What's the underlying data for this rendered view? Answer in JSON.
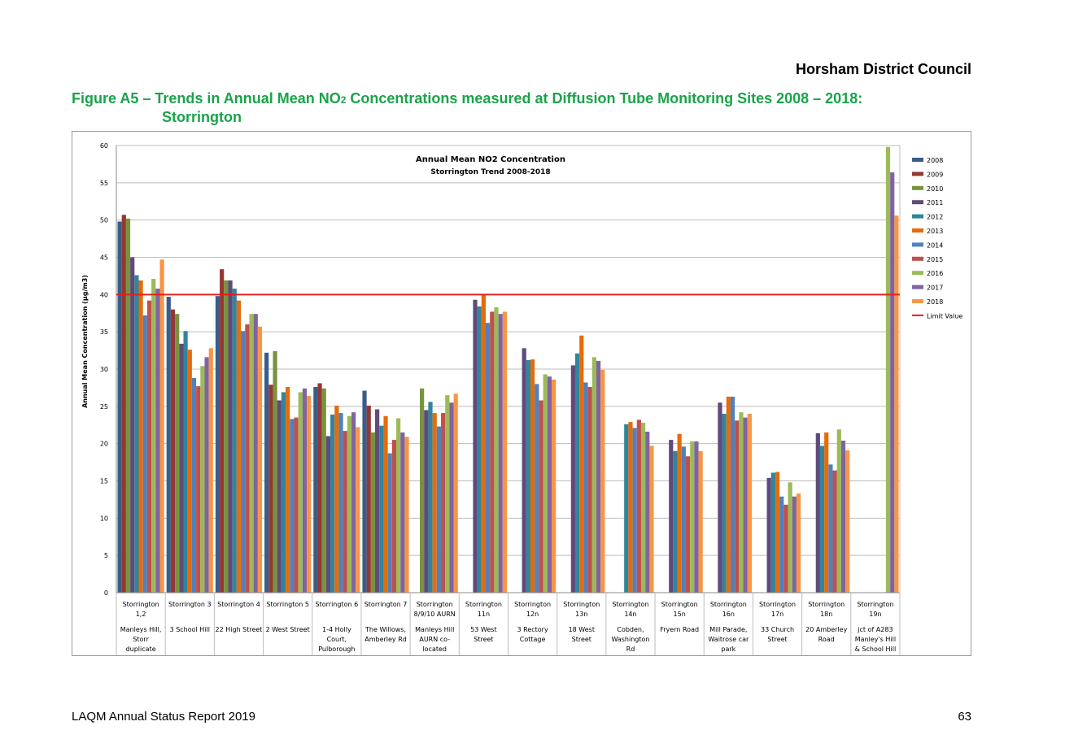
{
  "header": {
    "organization": "Horsham District Council"
  },
  "figure": {
    "title_prefix": "Figure A5 – Trends in Annual Mean NO",
    "title_subscript": "2",
    "title_suffix": " Concentrations measured at Diffusion Tube Monitoring Sites 2008 – 2018:",
    "title_line2": "Storrington"
  },
  "footer": {
    "report": "LAQM Annual Status Report 2019",
    "page": "63"
  },
  "chart_data": {
    "type": "bar",
    "title": "Annual Mean NO2 Concentration",
    "subtitle": "Storrington Trend 2008-2018",
    "ylabel": "Annual Mean Concentration (µg/m3)",
    "xlabel": "",
    "ylim": [
      0,
      60
    ],
    "yticks": [
      0,
      5,
      10,
      15,
      20,
      25,
      30,
      35,
      40,
      45,
      50,
      55,
      60
    ],
    "grid": true,
    "legend_position": "right",
    "limit_value": 40,
    "limit_label": "Limit Value",
    "limit_color": "#e02020",
    "categories": [
      {
        "site": [
          "Storrington",
          "1,2"
        ],
        "location": [
          "Manleys Hill,",
          "Storr",
          "duplicate"
        ]
      },
      {
        "site": [
          "Storrington 3"
        ],
        "location": [
          "3 School Hill"
        ]
      },
      {
        "site": [
          "Storrington 4"
        ],
        "location": [
          "22 High Street"
        ]
      },
      {
        "site": [
          "Storrington 5"
        ],
        "location": [
          "2 West Street"
        ]
      },
      {
        "site": [
          "Storrington 6"
        ],
        "location": [
          "1-4 Holly",
          "Court,",
          "Pulborough"
        ]
      },
      {
        "site": [
          "Storrington 7"
        ],
        "location": [
          "The Willows,",
          "Amberley Rd"
        ]
      },
      {
        "site": [
          "Storrington",
          "8/9/10 AURN"
        ],
        "location": [
          "Manleys Hill",
          "AURN co-",
          "located"
        ]
      },
      {
        "site": [
          "Storrington",
          "11n"
        ],
        "location": [
          "53 West",
          "Street"
        ]
      },
      {
        "site": [
          "Storrington",
          "12n"
        ],
        "location": [
          "3 Rectory",
          "Cottage"
        ]
      },
      {
        "site": [
          "Storrington",
          "13n"
        ],
        "location": [
          "18 West",
          "Street"
        ]
      },
      {
        "site": [
          "Storrington",
          "14n"
        ],
        "location": [
          "Cobden,",
          "Washington",
          "Rd"
        ]
      },
      {
        "site": [
          "Storrington",
          "15n"
        ],
        "location": [
          "Fryern Road"
        ]
      },
      {
        "site": [
          "Storrington",
          "16n"
        ],
        "location": [
          "Mill Parade,",
          "Waitrose car",
          "park"
        ]
      },
      {
        "site": [
          "Storrington",
          "17n"
        ],
        "location": [
          "33 Church",
          "Street"
        ]
      },
      {
        "site": [
          "Storrington",
          "18n"
        ],
        "location": [
          "20 Amberley",
          "Road"
        ]
      },
      {
        "site": [
          "Storrington",
          "19n"
        ],
        "location": [
          "jct of A283",
          "Manley's Hill",
          "& School Hill"
        ]
      }
    ],
    "series": [
      {
        "name": "2008",
        "color": "#385d8a",
        "values": [
          49.8,
          39.7,
          39.8,
          32.2,
          27.6,
          27.1,
          null,
          null,
          null,
          null,
          null,
          null,
          null,
          null,
          null,
          null
        ]
      },
      {
        "name": "2009",
        "color": "#953735",
        "values": [
          50.7,
          38.0,
          43.4,
          27.9,
          28.1,
          25.1,
          null,
          null,
          null,
          null,
          null,
          null,
          null,
          null,
          null,
          null
        ]
      },
      {
        "name": "2010",
        "color": "#77933c",
        "values": [
          50.2,
          37.4,
          41.9,
          32.4,
          27.4,
          21.5,
          27.4,
          null,
          null,
          null,
          null,
          null,
          null,
          null,
          null,
          null
        ]
      },
      {
        "name": "2011",
        "color": "#604a7b",
        "values": [
          45.0,
          33.4,
          41.9,
          25.8,
          21.0,
          24.6,
          24.5,
          39.3,
          32.8,
          30.5,
          null,
          20.5,
          25.5,
          15.4,
          21.4,
          null
        ]
      },
      {
        "name": "2012",
        "color": "#31859c",
        "values": [
          42.6,
          35.1,
          40.8,
          26.9,
          23.9,
          22.4,
          25.6,
          38.4,
          31.2,
          32.1,
          22.6,
          19.0,
          24.0,
          16.1,
          19.7,
          null
        ]
      },
      {
        "name": "2013",
        "color": "#e46c0a",
        "values": [
          41.9,
          32.6,
          39.2,
          27.6,
          25.1,
          23.7,
          24.1,
          40.0,
          31.3,
          34.5,
          22.9,
          21.3,
          26.3,
          16.2,
          21.5,
          null
        ]
      },
      {
        "name": "2014",
        "color": "#4f81bd",
        "values": [
          37.2,
          28.8,
          35.1,
          23.3,
          24.1,
          18.7,
          22.3,
          36.2,
          28.0,
          28.2,
          22.1,
          19.6,
          26.3,
          12.9,
          17.2,
          null
        ]
      },
      {
        "name": "2015",
        "color": "#c0504d",
        "values": [
          39.2,
          27.7,
          36.0,
          23.5,
          21.7,
          20.5,
          24.1,
          37.7,
          25.8,
          27.6,
          23.2,
          18.3,
          23.1,
          11.8,
          16.4,
          null
        ]
      },
      {
        "name": "2016",
        "color": "#9bbb59",
        "values": [
          42.1,
          30.4,
          37.4,
          26.9,
          23.7,
          23.4,
          26.5,
          38.3,
          29.3,
          31.6,
          22.8,
          20.3,
          24.2,
          14.8,
          21.9,
          59.8
        ]
      },
      {
        "name": "2017",
        "color": "#8064a2",
        "values": [
          40.8,
          31.6,
          37.4,
          27.4,
          24.2,
          21.5,
          25.5,
          37.4,
          29.0,
          31.1,
          21.6,
          20.3,
          23.5,
          12.9,
          20.4,
          56.4
        ]
      },
      {
        "name": "2018",
        "color": "#f79646",
        "values": [
          44.7,
          32.8,
          35.7,
          26.4,
          22.2,
          20.9,
          26.7,
          37.7,
          28.6,
          29.9,
          19.7,
          19.0,
          24.0,
          13.3,
          19.1,
          50.6
        ]
      }
    ]
  }
}
